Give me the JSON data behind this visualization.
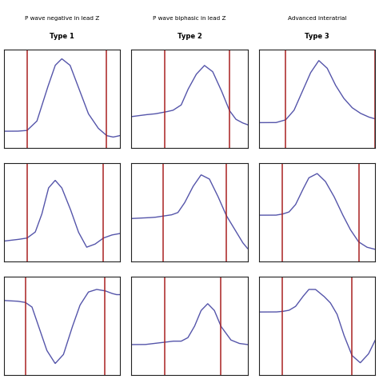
{
  "title_col1": "P wave negative in lead Z",
  "title_col2": "P wave biphasic in lead Z",
  "title_col3": "Advanced interatrial",
  "subtitle_col1": "Type 1",
  "subtitle_col2": "Type 2",
  "subtitle_col3": "Type 3",
  "line_color": "#5555aa",
  "vline_color": "#aa2222",
  "background": "#ffffff",
  "box_color": "#222222",
  "waveforms": {
    "r1c1": {
      "x": [
        -0.5,
        -0.1,
        0.2,
        0.5,
        0.8,
        1.05,
        1.25,
        1.5,
        1.75,
        2.05,
        2.35,
        2.6,
        2.8,
        3.0
      ],
      "y": [
        -0.02,
        -0.02,
        -0.01,
        0.12,
        0.55,
        0.88,
        0.97,
        0.88,
        0.58,
        0.22,
        0.02,
        -0.08,
        -0.1,
        -0.08
      ],
      "vlines": [
        0.2,
        2.6
      ],
      "ylim": [
        -0.25,
        1.1
      ]
    },
    "r1c2": {
      "x": [
        -0.5,
        -0.1,
        0.2,
        0.5,
        0.75,
        1.0,
        1.2,
        1.45,
        1.7,
        1.95,
        2.2,
        2.45,
        2.65,
        2.85,
        3.0
      ],
      "y": [
        0.25,
        0.27,
        0.28,
        0.3,
        0.32,
        0.38,
        0.55,
        0.72,
        0.82,
        0.75,
        0.55,
        0.32,
        0.22,
        0.18,
        0.16
      ],
      "vlines": [
        0.5,
        2.45
      ],
      "ylim": [
        -0.1,
        1.0
      ]
    },
    "r1c3": {
      "x": [
        -0.5,
        0.0,
        0.3,
        0.55,
        0.8,
        1.05,
        1.3,
        1.55,
        1.8,
        2.05,
        2.3,
        2.55,
        2.8,
        3.0
      ],
      "y": [
        0.22,
        0.22,
        0.25,
        0.35,
        0.55,
        0.75,
        0.88,
        0.8,
        0.62,
        0.48,
        0.38,
        0.32,
        0.28,
        0.26
      ],
      "vlines": [
        0.3,
        3.0
      ],
      "ylim": [
        -0.05,
        1.0
      ]
    },
    "r2c1": {
      "x": [
        -0.5,
        -0.1,
        0.2,
        0.45,
        0.65,
        0.85,
        1.05,
        1.25,
        1.5,
        1.75,
        2.0,
        2.25,
        2.5,
        2.75,
        3.0
      ],
      "y": [
        -0.18,
        -0.16,
        -0.14,
        -0.06,
        0.18,
        0.52,
        0.62,
        0.52,
        0.25,
        -0.06,
        -0.26,
        -0.22,
        -0.14,
        -0.1,
        -0.08
      ],
      "vlines": [
        0.2,
        2.5
      ],
      "ylim": [
        -0.45,
        0.85
      ]
    },
    "r2c2": {
      "x": [
        -0.5,
        -0.1,
        0.2,
        0.45,
        0.7,
        0.9,
        1.1,
        1.35,
        1.6,
        1.85,
        2.1,
        2.35,
        2.6,
        2.85,
        3.0
      ],
      "y": [
        0.12,
        0.13,
        0.14,
        0.16,
        0.18,
        0.22,
        0.38,
        0.65,
        0.85,
        0.78,
        0.5,
        0.18,
        -0.05,
        -0.28,
        -0.38
      ],
      "vlines": [
        0.45,
        2.35
      ],
      "ylim": [
        -0.6,
        1.05
      ]
    },
    "r2c3": {
      "x": [
        -0.5,
        0.0,
        0.2,
        0.4,
        0.6,
        0.8,
        1.0,
        1.25,
        1.5,
        1.75,
        2.0,
        2.25,
        2.5,
        2.75,
        3.0
      ],
      "y": [
        0.12,
        0.12,
        0.14,
        0.18,
        0.32,
        0.58,
        0.82,
        0.9,
        0.75,
        0.48,
        0.15,
        -0.15,
        -0.38,
        -0.48,
        -0.52
      ],
      "vlines": [
        0.2,
        2.5
      ],
      "ylim": [
        -0.75,
        1.1
      ]
    },
    "r3c1": {
      "x": [
        -0.5,
        -0.1,
        0.15,
        0.35,
        0.55,
        0.8,
        1.05,
        1.3,
        1.55,
        1.8,
        2.05,
        2.3,
        2.55,
        2.75,
        2.9,
        3.0
      ],
      "y": [
        0.05,
        0.04,
        0.02,
        -0.05,
        -0.35,
        -0.72,
        -0.92,
        -0.78,
        -0.38,
        -0.02,
        0.18,
        0.22,
        0.2,
        0.16,
        0.14,
        0.14
      ],
      "vlines": [
        0.15,
        2.55
      ],
      "ylim": [
        -1.1,
        0.42
      ]
    },
    "r3c2": {
      "x": [
        -0.5,
        -0.1,
        0.2,
        0.5,
        0.75,
        1.0,
        1.2,
        1.4,
        1.6,
        1.8,
        2.0,
        2.2,
        2.5,
        2.75,
        3.0
      ],
      "y": [
        0.12,
        0.12,
        0.13,
        0.14,
        0.15,
        0.15,
        0.18,
        0.28,
        0.42,
        0.48,
        0.42,
        0.28,
        0.16,
        0.13,
        0.12
      ],
      "vlines": [
        0.5,
        2.2
      ],
      "ylim": [
        -0.15,
        0.72
      ]
    },
    "r3c3": {
      "x": [
        -0.5,
        0.0,
        0.2,
        0.4,
        0.6,
        0.8,
        1.0,
        1.2,
        1.45,
        1.65,
        1.85,
        2.05,
        2.3,
        2.55,
        2.8,
        3.0
      ],
      "y": [
        0.12,
        0.12,
        0.13,
        0.15,
        0.22,
        0.38,
        0.52,
        0.52,
        0.4,
        0.28,
        0.08,
        -0.28,
        -0.65,
        -0.78,
        -0.62,
        -0.38
      ],
      "vlines": [
        0.2,
        2.3
      ],
      "ylim": [
        -1.0,
        0.75
      ]
    }
  }
}
